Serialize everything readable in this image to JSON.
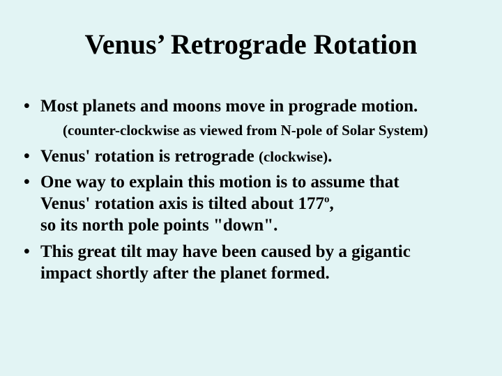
{
  "background_color": "#e2f4f4",
  "text_color": "#000000",
  "font_family": "Times New Roman",
  "title": {
    "text": "Venus’ Retrograde Rotation",
    "fontsize": 40,
    "weight": "bold"
  },
  "bullets": [
    {
      "text": "Most planets and moons move in prograde motion.",
      "subline": "(counter-clockwise as viewed from N-pole of Solar System)"
    },
    {
      "text_pre": "Venus' rotation is retrograde ",
      "paren": "(clockwise)",
      "text_post": "."
    },
    {
      "line1": "One way to explain this motion is to assume that",
      "line2_pre": "Venus' rotation axis is tilted about 177",
      "degree_sup": "o",
      "line2_post": ",",
      "line3": "so its north pole points \"down\"."
    },
    {
      "line1": "This great tilt may have been caused by a gigantic",
      "line2": "impact shortly after the planet formed."
    }
  ]
}
